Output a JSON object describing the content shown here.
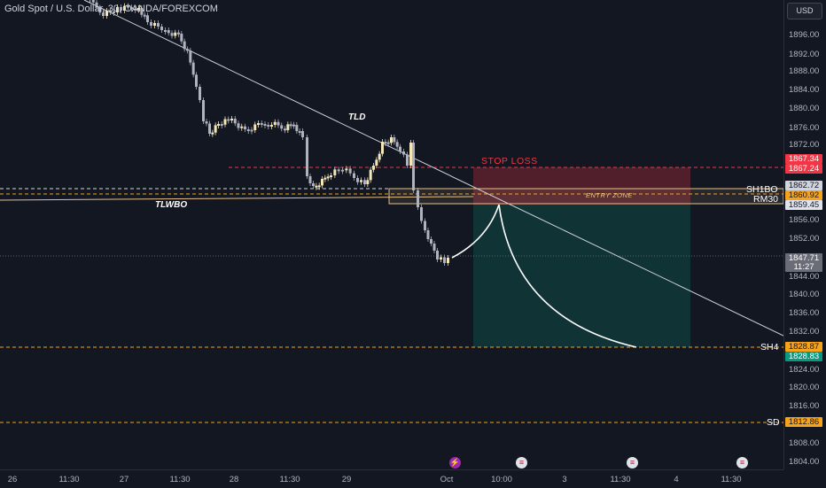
{
  "symbol_title": "Gold Spot / U.S. Dollar, 30, OANDA/FOREXCOM",
  "currency": "USD",
  "price_ticks": [
    "1896.00",
    "1892.00",
    "1888.00",
    "1884.00",
    "1880.00",
    "1876.00",
    "1872.00",
    "1856.00",
    "1852.00",
    "1844.00",
    "1840.00",
    "1836.00",
    "1832.00",
    "1824.00",
    "1820.00",
    "1816.00",
    "1808.00",
    "1804.00"
  ],
  "price_tags": {
    "sl_top": "1867.34",
    "sl_bottom": "1867.24",
    "sh1bo": "1862.72",
    "rm30": "1860.92",
    "zone_low": "1859.45",
    "last_price": "1847.71",
    "countdown": "11:27",
    "sh4": "1828.87",
    "target": "1828.83",
    "sd": "1812.86"
  },
  "time_labels": [
    "26",
    "11:30",
    "27",
    "11:30",
    "28",
    "11:30",
    "29",
    "Oct",
    "10:00",
    "3",
    "11:30",
    "4",
    "11:30"
  ],
  "annotations": {
    "tld": "TLD",
    "tlwbo": "TLWBO",
    "stop_loss": "STOP LOSS",
    "entry_zone": "ENTRY ZONE",
    "sh1bo": "SH1BO",
    "rm30": "RM30",
    "sh4": "SH4",
    "sd": "SD"
  },
  "colors": {
    "background": "#131722",
    "candle_up": "#f5e6b8",
    "candle_down": "#b0b3bd",
    "stop_zone": "#f23645",
    "target_zone": "#089981",
    "level_orange": "#f7a21b",
    "entry_line": "#e6c287"
  },
  "icons": [
    "flash-event-icon",
    "us-flag-event-icon",
    "us-flag-event-icon",
    "us-flag-event-icon"
  ]
}
